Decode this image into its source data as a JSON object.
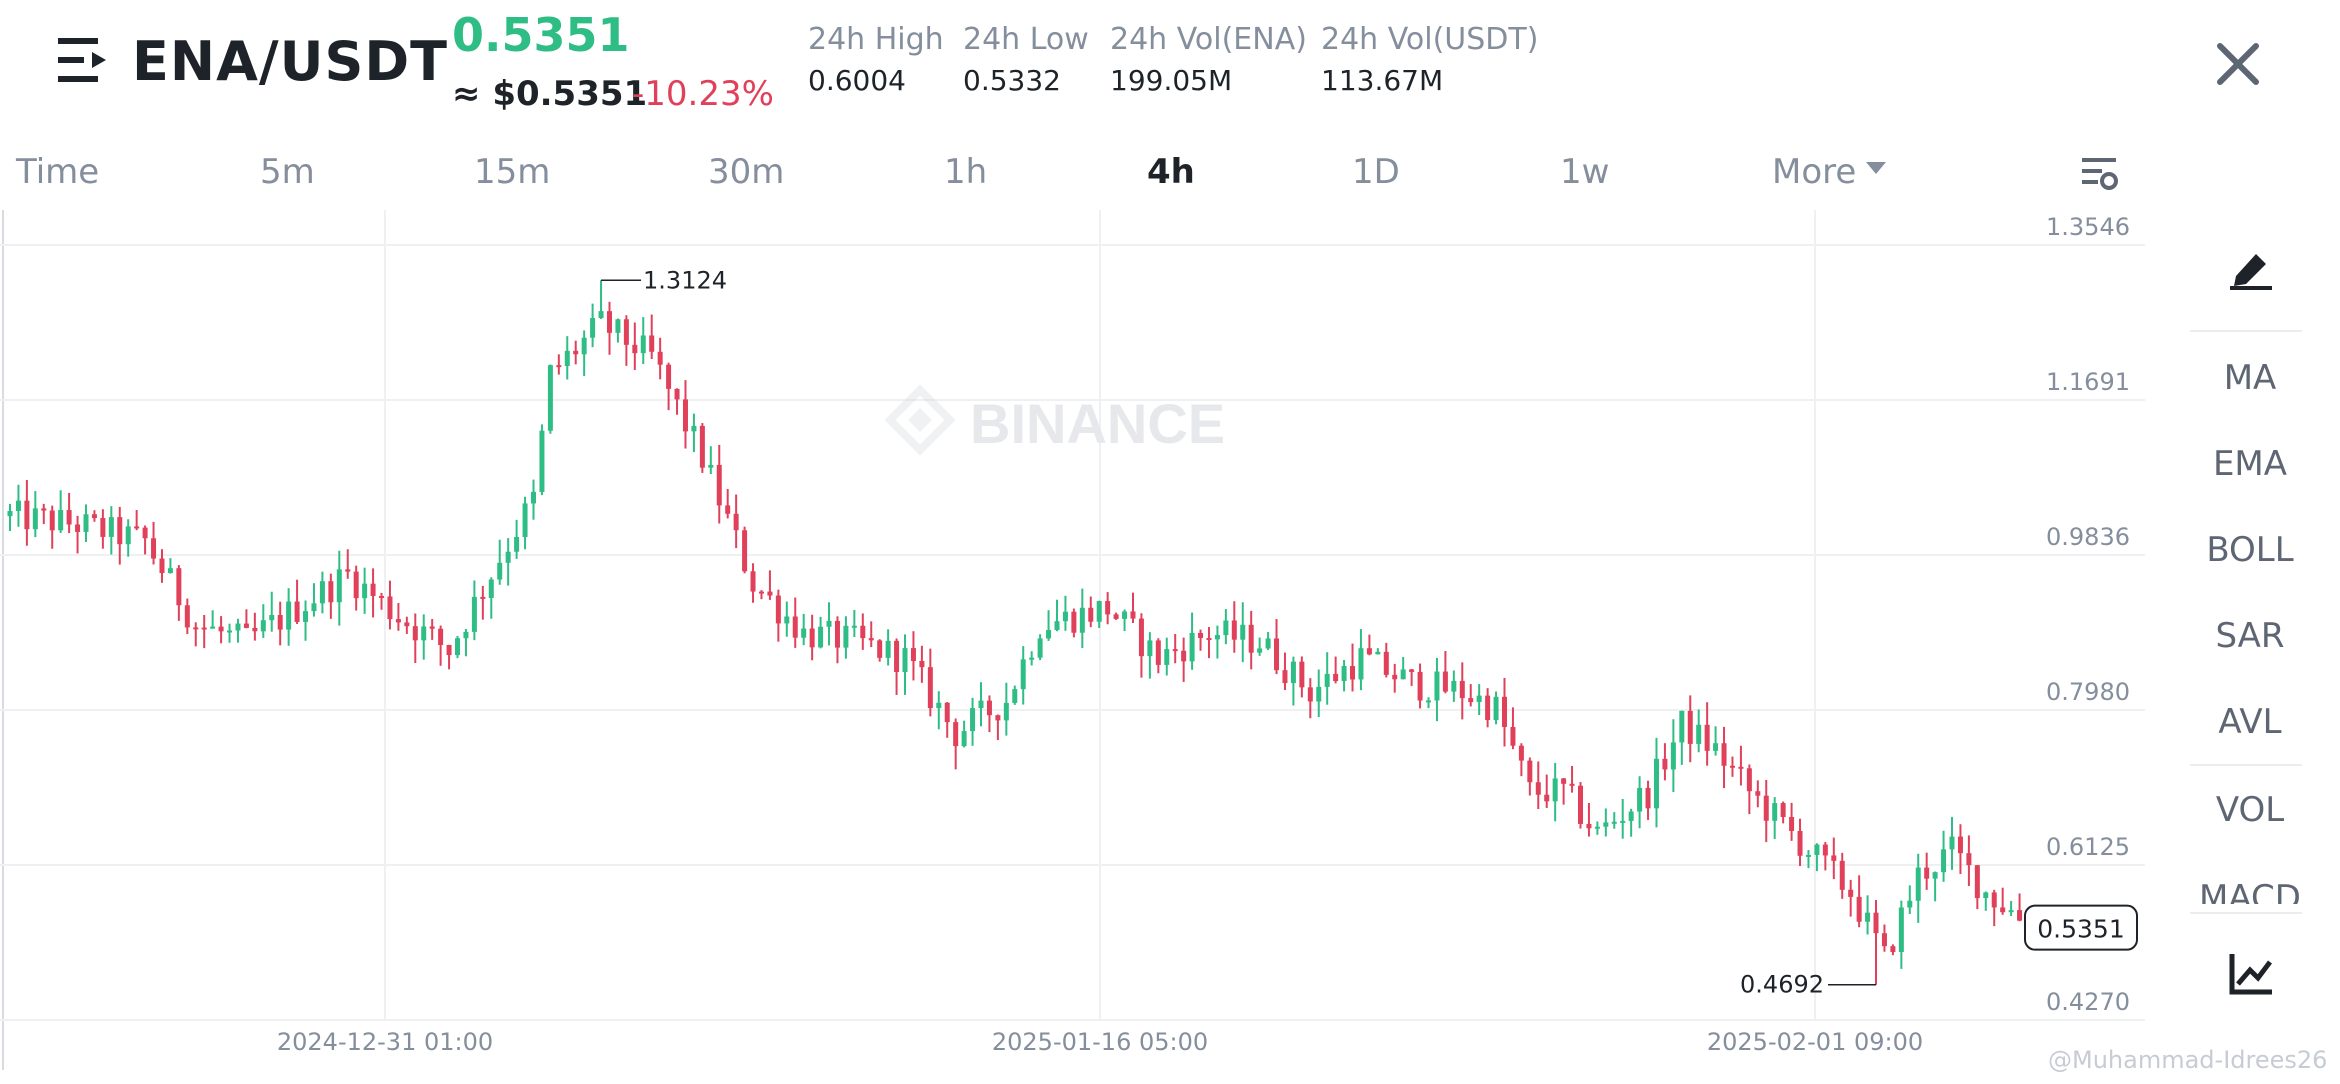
{
  "header": {
    "pair": "ENA/USDT",
    "price": "0.5351",
    "usd_price": "≈ $0.5351",
    "change_pct": "-10.23%",
    "stats": [
      {
        "label": "24h High",
        "value": "0.6004"
      },
      {
        "label": "24h Low",
        "value": "0.5332"
      },
      {
        "label": "24h Vol(ENA)",
        "value": "199.05M"
      },
      {
        "label": "24h Vol(USDT)",
        "value": "113.67M"
      }
    ]
  },
  "tabs": {
    "items": [
      "Time",
      "5m",
      "15m",
      "30m",
      "1h",
      "4h",
      "1D",
      "1w",
      "More"
    ],
    "active": "4h"
  },
  "sidebar": {
    "items": [
      "MA",
      "EMA",
      "BOLL",
      "SAR",
      "AVL",
      "VOL",
      "MACD"
    ]
  },
  "colors": {
    "up": "#2ebd85",
    "down": "#e0405a",
    "grid": "#eef0f2"
  },
  "icons": [
    "menu-icon",
    "close-icon",
    "chart-settings-icon",
    "draw-pen-icon",
    "chart-analysis-icon",
    "binance-logo-icon"
  ],
  "watermark": "@Muhammad-Idrees26",
  "chart_watermark": "BINANCE",
  "chart_data": {
    "type": "candlestick",
    "y_ticks": [
      "1.3546",
      "1.1691",
      "0.9836",
      "0.7980",
      "0.6125",
      "0.4270"
    ],
    "x_ticks": [
      "2024-12-31 01:00",
      "2025-01-16 05:00",
      "2025-02-01 09:00"
    ],
    "ylim": [
      0.427,
      1.3546
    ],
    "high_marker": "1.3124",
    "low_marker": "0.4692",
    "last_price": "0.5351",
    "anchors": [
      [
        0,
        1.03
      ],
      [
        8,
        1.02
      ],
      [
        16,
        1.0
      ],
      [
        22,
        0.9
      ],
      [
        28,
        0.88
      ],
      [
        34,
        0.92
      ],
      [
        40,
        0.96
      ],
      [
        46,
        0.91
      ],
      [
        52,
        0.87
      ],
      [
        58,
        0.98
      ],
      [
        62,
        1.05
      ],
      [
        64,
        1.2
      ],
      [
        70,
        1.26
      ],
      [
        76,
        1.22
      ],
      [
        82,
        1.1
      ],
      [
        88,
        0.95
      ],
      [
        94,
        0.89
      ],
      [
        100,
        0.88
      ],
      [
        106,
        0.86
      ],
      [
        112,
        0.77
      ],
      [
        118,
        0.81
      ],
      [
        122,
        0.9
      ],
      [
        130,
        0.92
      ],
      [
        136,
        0.86
      ],
      [
        142,
        0.89
      ],
      [
        148,
        0.88
      ],
      [
        154,
        0.82
      ],
      [
        160,
        0.86
      ],
      [
        166,
        0.83
      ],
      [
        172,
        0.82
      ],
      [
        176,
        0.8
      ],
      [
        180,
        0.7
      ],
      [
        184,
        0.7
      ],
      [
        188,
        0.65
      ],
      [
        194,
        0.7
      ],
      [
        198,
        0.78
      ],
      [
        202,
        0.75
      ],
      [
        206,
        0.7
      ],
      [
        212,
        0.64
      ],
      [
        218,
        0.58
      ],
      [
        222,
        0.5
      ],
      [
        226,
        0.6
      ],
      [
        230,
        0.63
      ],
      [
        234,
        0.58
      ],
      [
        238,
        0.55
      ],
      [
        240,
        0.535
      ]
    ]
  }
}
